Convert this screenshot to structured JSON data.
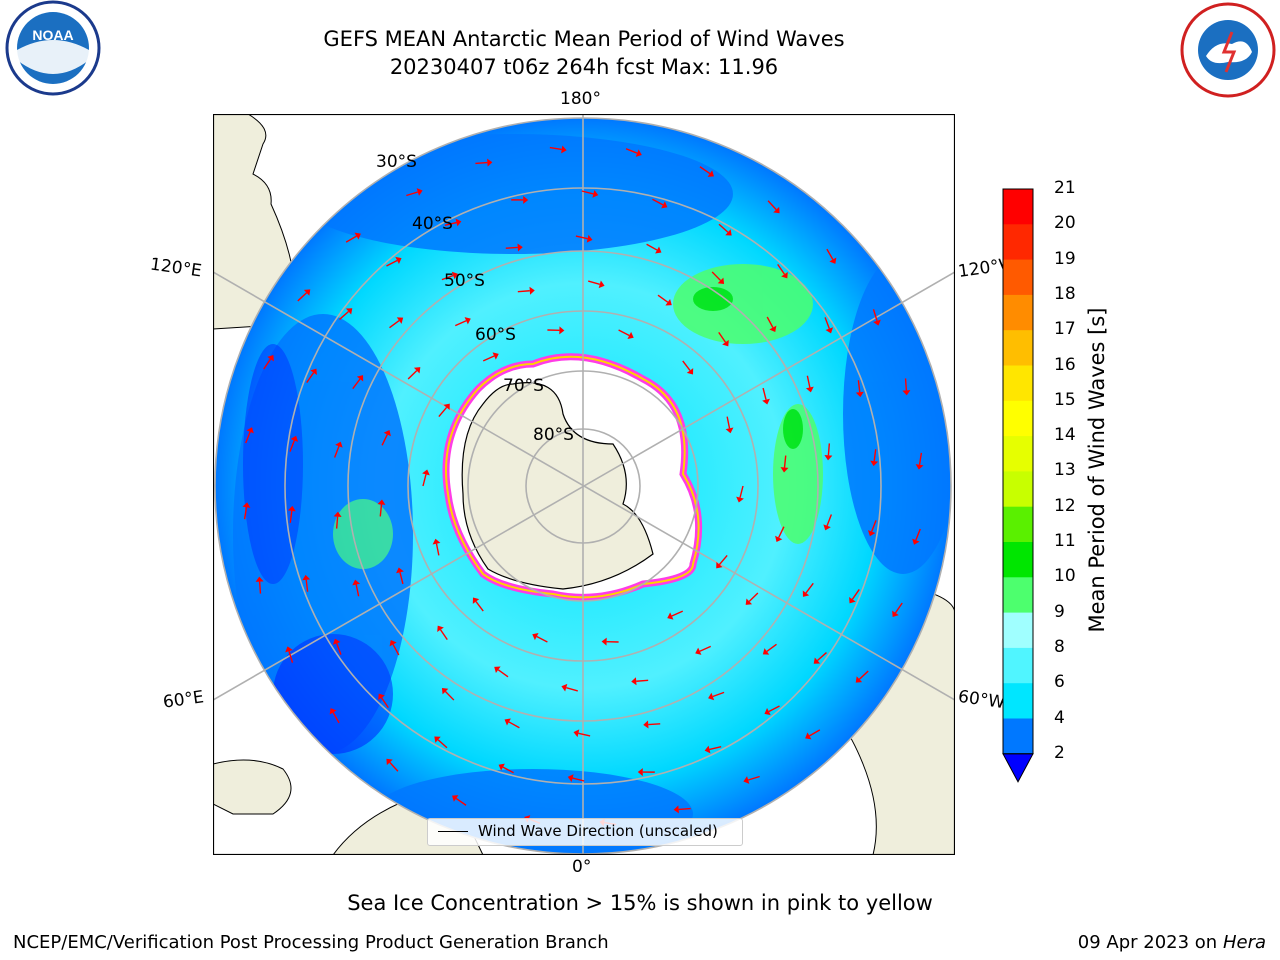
{
  "title_line1": "GEFS MEAN Antarctic Mean Period of Wind Waves",
  "title_line2": "20230407 t06z 264h fcst   Max: 11.96",
  "map": {
    "projection": "south-polar-stereographic",
    "lon_labels": {
      "top": "180°",
      "bottom": "0°",
      "upper_left": "120°E",
      "upper_right": "120°W",
      "lower_left": "60°E",
      "lower_right": "60°W"
    },
    "lat_labels": [
      "30°S",
      "40°S",
      "50°S",
      "60°S",
      "70°S",
      "80°S"
    ],
    "legend_text": "Wind Wave Direction (unscaled)",
    "colors": {
      "ocean_low": "#0078ff",
      "ocean_mid": "#00e6ff",
      "ocean_high": "#4dff6e",
      "land": "#efeedc",
      "ice_edge": "#ff3ce6",
      "arrows": "#ff0000"
    }
  },
  "colorbar": {
    "label": "Mean Period of Wind Waves [s]",
    "ticks": [
      "2",
      "4",
      "6",
      "8",
      "9",
      "10",
      "11",
      "12",
      "13",
      "14",
      "15",
      "16",
      "17",
      "18",
      "19",
      "20",
      "21"
    ],
    "colors": [
      "#0078ff",
      "#00e6ff",
      "#50f5ff",
      "#a0ffff",
      "#4dff6e",
      "#00e600",
      "#5af000",
      "#c8ff00",
      "#e6ff00",
      "#ffff00",
      "#ffe600",
      "#ffbe00",
      "#ff8c00",
      "#ff5a00",
      "#ff2800",
      "#ff0000"
    ],
    "extend_color": "#0000ff"
  },
  "note": "Sea Ice Concentration > 15% is shown in pink to yellow",
  "footer_left": "NCEP/EMC/Verification Post Processing Product Generation Branch",
  "footer_right_date": "09 Apr 2023 on ",
  "footer_right_host": "Hera",
  "logos": {
    "left": "NOAA",
    "right": "NATIONAL WEATHER SERVICE"
  }
}
